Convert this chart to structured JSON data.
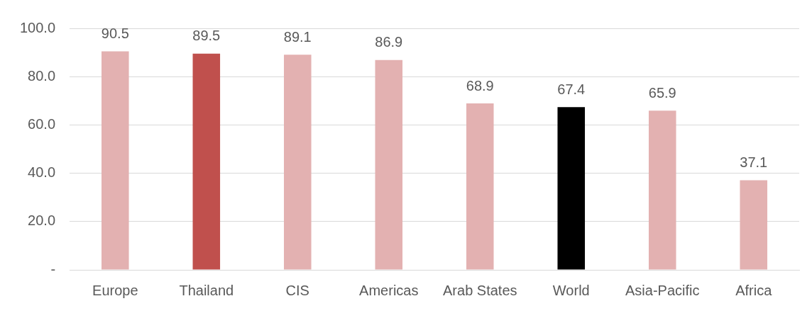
{
  "chart_data": {
    "type": "bar",
    "categories": [
      "Europe",
      "Thailand",
      "CIS",
      "Americas",
      "Arab States",
      "World",
      "Asia-Pacific",
      "Africa"
    ],
    "values": [
      90.5,
      89.5,
      89.1,
      86.9,
      68.9,
      67.4,
      65.9,
      37.1
    ],
    "colors": [
      "#e3b1b1",
      "#c0504d",
      "#e3b1b1",
      "#e3b1b1",
      "#e3b1b1",
      "#000000",
      "#e3b1b1",
      "#e3b1b1"
    ],
    "ylim": [
      0,
      100
    ],
    "yticks": [
      {
        "value": 0,
        "label": "-"
      },
      {
        "value": 20,
        "label": "20.0"
      },
      {
        "value": 40,
        "label": "40.0"
      },
      {
        "value": 60,
        "label": "60.0"
      },
      {
        "value": 80,
        "label": "80.0"
      },
      {
        "value": 100,
        "label": "100.0"
      }
    ],
    "grid": "y",
    "data_labels": true,
    "legend": false
  }
}
